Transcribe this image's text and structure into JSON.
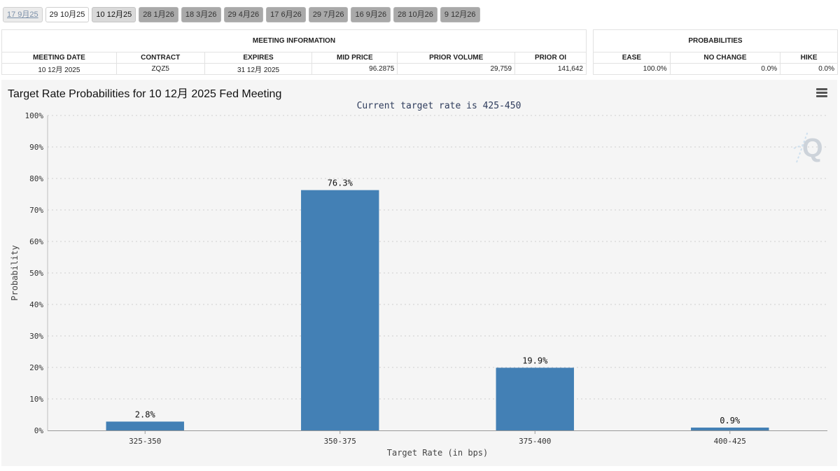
{
  "tabs": [
    {
      "label": "17 9月25",
      "state": "past"
    },
    {
      "label": "29 10月25",
      "state": "current"
    },
    {
      "label": "10 12月25",
      "state": "selected"
    },
    {
      "label": "28 1月26",
      "state": "future"
    },
    {
      "label": "18 3月26",
      "state": "future"
    },
    {
      "label": "29 4月26",
      "state": "future"
    },
    {
      "label": "17 6月26",
      "state": "future"
    },
    {
      "label": "29 7月26",
      "state": "future"
    },
    {
      "label": "16 9月26",
      "state": "future"
    },
    {
      "label": "28 10月26",
      "state": "future"
    },
    {
      "label": "9 12月26",
      "state": "future"
    }
  ],
  "meeting_info": {
    "title": "MEETING INFORMATION",
    "headers": [
      "MEETING DATE",
      "CONTRACT",
      "EXPIRES",
      "MID PRICE",
      "PRIOR VOLUME",
      "PRIOR OI"
    ],
    "row": [
      "10 12月 2025",
      "ZQZ5",
      "31 12月 2025",
      "96.2875",
      "29,759",
      "141,642"
    ]
  },
  "probabilities": {
    "title": "PROBABILITIES",
    "headers": [
      "EASE",
      "NO CHANGE",
      "HIKE"
    ],
    "row": [
      "100.0%",
      "0.0%",
      "0.0%"
    ]
  },
  "chart": {
    "title": "Target Rate Probabilities for 10 12月 2025 Fed Meeting",
    "subtitle": "Current target rate is 425-450",
    "menu_icon": "hamburger-menu-icon",
    "watermark_icon": "q-logo-icon"
  },
  "chart_data": {
    "type": "bar",
    "categories": [
      "325-350",
      "350-375",
      "375-400",
      "400-425"
    ],
    "values": [
      2.8,
      76.3,
      19.9,
      0.9
    ],
    "data_labels": [
      "2.8%",
      "76.3%",
      "19.9%",
      "0.9%"
    ],
    "title": "Target Rate Probabilities for 10 12月 2025 Fed Meeting",
    "subtitle": "Current target rate is 425-450",
    "xlabel": "Target Rate (in bps)",
    "ylabel": "Probability",
    "ylim": [
      0,
      100
    ],
    "yticks": [
      "0%",
      "10%",
      "20%",
      "30%",
      "40%",
      "50%",
      "60%",
      "70%",
      "80%",
      "90%",
      "100%"
    ],
    "grid": true,
    "bar_color": "#4380b5"
  }
}
